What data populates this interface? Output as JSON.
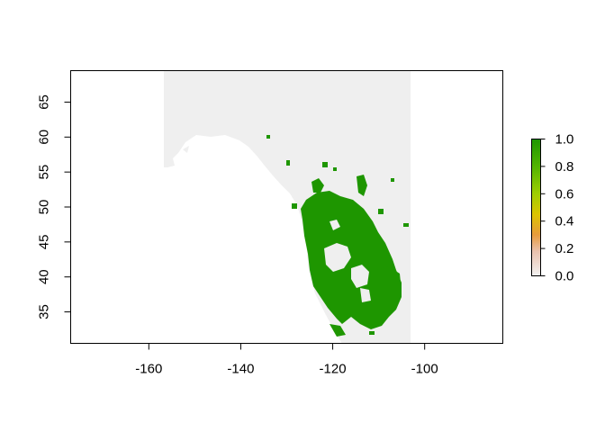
{
  "map": {
    "x_axis": {
      "range": [
        -177,
        -83
      ],
      "ticks": [
        {
          "value": -160,
          "label": "-160"
        },
        {
          "value": -140,
          "label": "-140"
        },
        {
          "value": -120,
          "label": "-120"
        },
        {
          "value": -100,
          "label": "-100"
        }
      ]
    },
    "y_axis": {
      "range": [
        30.5,
        69.5
      ],
      "ticks": [
        {
          "value": 35,
          "label": "35"
        },
        {
          "value": 40,
          "label": "40"
        },
        {
          "value": 45,
          "label": "45"
        },
        {
          "value": 50,
          "label": "50"
        },
        {
          "value": 55,
          "label": "55"
        },
        {
          "value": 60,
          "label": "60"
        },
        {
          "value": 65,
          "label": "65"
        }
      ]
    },
    "background_color": "#efefef",
    "presence_color": "#1e9600",
    "legend": {
      "range": [
        0,
        1
      ],
      "ticks": [
        {
          "value": 0.0,
          "label": "0.0"
        },
        {
          "value": 0.2,
          "label": "0.2"
        },
        {
          "value": 0.4,
          "label": "0.4"
        },
        {
          "value": 0.6,
          "label": "0.6"
        },
        {
          "value": 0.8,
          "label": "0.8"
        },
        {
          "value": 1.0,
          "label": "1.0"
        }
      ],
      "color_stops": [
        "#f2f2f2",
        "#eac1ad",
        "#e79b3c",
        "#dcc400",
        "#9fce00",
        "#52b400",
        "#1e9600"
      ]
    }
  }
}
